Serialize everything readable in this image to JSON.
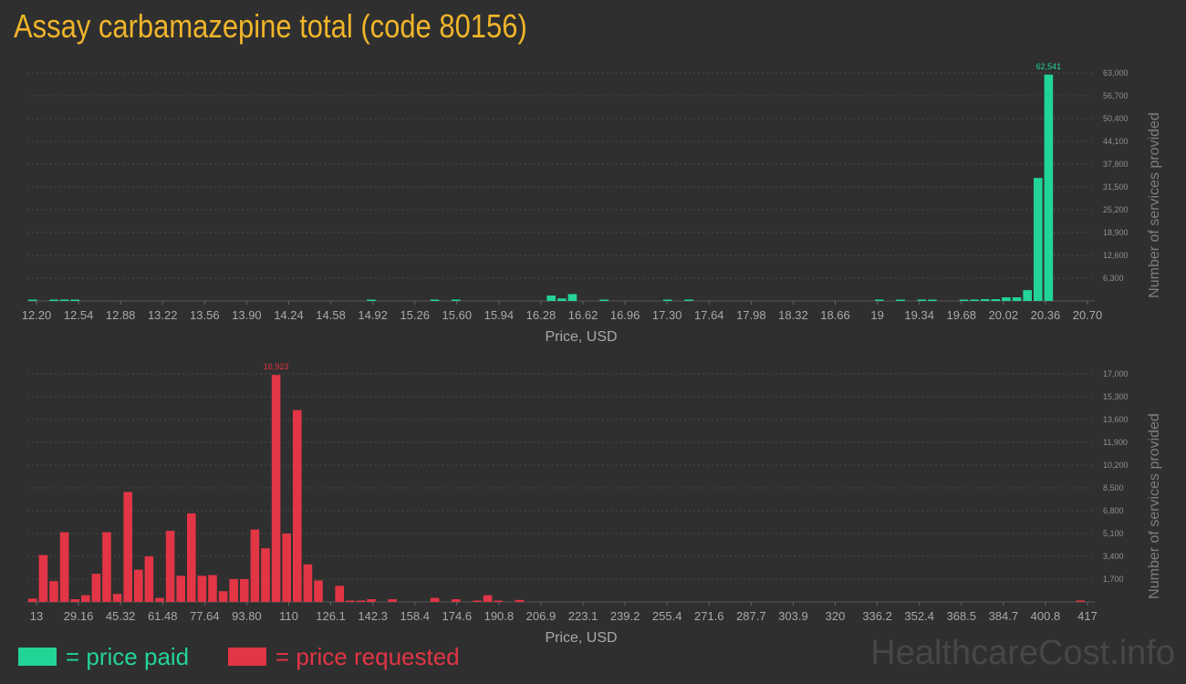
{
  "title": "Assay carbamazepine total (code 80156)",
  "colors": {
    "background": "#2f2f2f",
    "paid": "#22d495",
    "requested": "#e23545",
    "title": "#f0b52a"
  },
  "legend": {
    "paid_label": "= price paid",
    "requested_label": "= price requested"
  },
  "watermark": "HealthcareCost.info",
  "chart_data": [
    {
      "type": "bar",
      "name": "paid",
      "xlabel": "Price, USD",
      "ylabel": "Number of services provided",
      "x_tick_labels": [
        "12.20",
        "12.54",
        "12.88",
        "13.22",
        "13.56",
        "13.90",
        "14.24",
        "14.58",
        "14.92",
        "15.26",
        "15.60",
        "15.94",
        "16.28",
        "16.62",
        "16.96",
        "17.30",
        "17.64",
        "17.98",
        "18.32",
        "18.66",
        "19",
        "19.34",
        "19.68",
        "20.02",
        "20.36",
        "20.70"
      ],
      "y_ticks": [
        "6,300",
        "12,600",
        "18,900",
        "25,200",
        "31,500",
        "37,800",
        "44,100",
        "50,400",
        "56,700",
        "63,000"
      ],
      "ylim": [
        0,
        63000
      ],
      "bin_count": 100,
      "bins": [
        {
          "i": 0,
          "v": 150
        },
        {
          "i": 2,
          "v": 120
        },
        {
          "i": 3,
          "v": 200
        },
        {
          "i": 4,
          "v": 150
        },
        {
          "i": 32,
          "v": 150
        },
        {
          "i": 38,
          "v": 100
        },
        {
          "i": 40,
          "v": 100
        },
        {
          "i": 49,
          "v": 1500
        },
        {
          "i": 50,
          "v": 700
        },
        {
          "i": 51,
          "v": 1900
        },
        {
          "i": 54,
          "v": 120
        },
        {
          "i": 60,
          "v": 100
        },
        {
          "i": 62,
          "v": 100
        },
        {
          "i": 80,
          "v": 100
        },
        {
          "i": 82,
          "v": 120
        },
        {
          "i": 84,
          "v": 150
        },
        {
          "i": 85,
          "v": 100
        },
        {
          "i": 88,
          "v": 200
        },
        {
          "i": 89,
          "v": 250
        },
        {
          "i": 90,
          "v": 500
        },
        {
          "i": 91,
          "v": 500
        },
        {
          "i": 92,
          "v": 1000
        },
        {
          "i": 93,
          "v": 1000
        },
        {
          "i": 94,
          "v": 3000
        },
        {
          "i": 95,
          "v": 34000
        },
        {
          "i": 96,
          "v": 62541
        }
      ],
      "peak_label": "62,541"
    },
    {
      "type": "bar",
      "name": "requested",
      "xlabel": "Price, USD",
      "ylabel": "Number of services provided",
      "x_tick_labels": [
        "13",
        "29.16",
        "45.32",
        "61.48",
        "77.64",
        "93.80",
        "110",
        "126.1",
        "142.3",
        "158.4",
        "174.6",
        "190.8",
        "206.9",
        "223.1",
        "239.2",
        "255.4",
        "271.6",
        "287.7",
        "303.9",
        "320",
        "336.2",
        "352.4",
        "368.5",
        "384.7",
        "400.8",
        "417"
      ],
      "y_ticks": [
        "1,700",
        "3,400",
        "5,100",
        "6,800",
        "8,500",
        "10,200",
        "11,900",
        "13,600",
        "15,300",
        "17,000"
      ],
      "ylim": [
        0,
        17000
      ],
      "bin_count": 100,
      "bins": [
        {
          "i": 0,
          "v": 250
        },
        {
          "i": 1,
          "v": 3500
        },
        {
          "i": 2,
          "v": 1550
        },
        {
          "i": 3,
          "v": 5200
        },
        {
          "i": 4,
          "v": 200
        },
        {
          "i": 5,
          "v": 500
        },
        {
          "i": 6,
          "v": 2100
        },
        {
          "i": 7,
          "v": 5200
        },
        {
          "i": 8,
          "v": 600
        },
        {
          "i": 9,
          "v": 8200
        },
        {
          "i": 10,
          "v": 2400
        },
        {
          "i": 11,
          "v": 3400
        },
        {
          "i": 12,
          "v": 300
        },
        {
          "i": 13,
          "v": 5300
        },
        {
          "i": 14,
          "v": 1950
        },
        {
          "i": 15,
          "v": 6600
        },
        {
          "i": 16,
          "v": 1950
        },
        {
          "i": 17,
          "v": 2000
        },
        {
          "i": 18,
          "v": 800
        },
        {
          "i": 19,
          "v": 1700
        },
        {
          "i": 20,
          "v": 1700
        },
        {
          "i": 21,
          "v": 5400
        },
        {
          "i": 22,
          "v": 4000
        },
        {
          "i": 23,
          "v": 16923
        },
        {
          "i": 24,
          "v": 5100
        },
        {
          "i": 25,
          "v": 14300
        },
        {
          "i": 26,
          "v": 2800
        },
        {
          "i": 27,
          "v": 1600
        },
        {
          "i": 29,
          "v": 1200
        },
        {
          "i": 30,
          "v": 100
        },
        {
          "i": 31,
          "v": 100
        },
        {
          "i": 32,
          "v": 200
        },
        {
          "i": 34,
          "v": 200
        },
        {
          "i": 38,
          "v": 300
        },
        {
          "i": 40,
          "v": 200
        },
        {
          "i": 42,
          "v": 100
        },
        {
          "i": 43,
          "v": 500
        },
        {
          "i": 44,
          "v": 100
        },
        {
          "i": 46,
          "v": 150
        },
        {
          "i": 99,
          "v": 100
        }
      ],
      "peak_label": "16,923"
    }
  ]
}
